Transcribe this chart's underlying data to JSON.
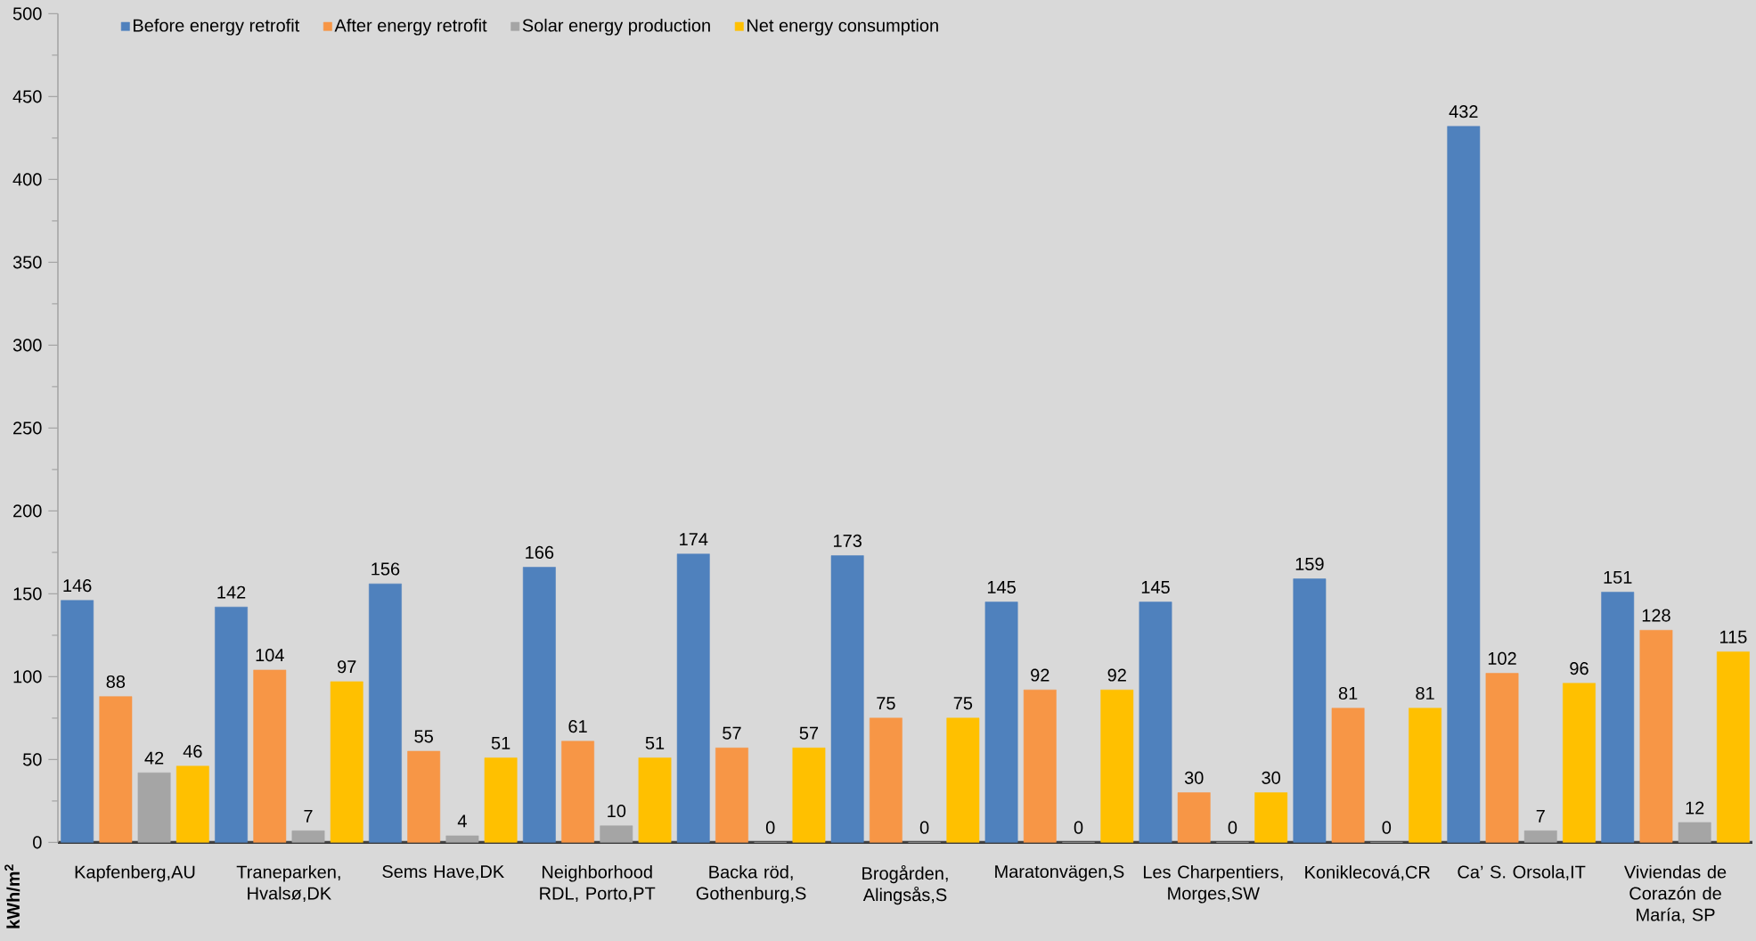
{
  "chart_data": {
    "type": "bar",
    "ylabel": "kWh/m$^{2}$",
    "categories": [
      "Kapfenberg,AU",
      "Traneparken, Hvalsø,DK",
      "Sems Have,DK",
      "Neighborhood RDL, Porto,PT",
      "Backa röd, Gothenburg,S",
      "Brogården, Alingsås,S",
      "Maratonvägen,S",
      "Les Charpentiers, Morges,SW",
      "Koniklecová,CR",
      "Ca’ S. Orsola,IT",
      "Viviendas de Corazón de María, SP"
    ],
    "series": [
      {
        "name": "Before energy retrofit",
        "color": "#4f81bd",
        "values": [
          146,
          142,
          156,
          166,
          174,
          173,
          145,
          145,
          159,
          432,
          151
        ]
      },
      {
        "name": "After energy retrofit",
        "color": "#f79646",
        "values": [
          88,
          104,
          55,
          61,
          57,
          75,
          92,
          30,
          81,
          102,
          128
        ]
      },
      {
        "name": "Solar energy production",
        "color": "#a5a5a5",
        "values": [
          42,
          7,
          4,
          10,
          0,
          0,
          0,
          0,
          0,
          7,
          12
        ]
      },
      {
        "name": "Net energy consumption",
        "color": "#ffc000",
        "values": [
          46,
          97,
          51,
          51,
          57,
          75,
          92,
          30,
          81,
          96,
          115
        ]
      }
    ],
    "ylim": [
      0,
      500
    ],
    "yticks": [
      0,
      50,
      100,
      150,
      200,
      250,
      300,
      350,
      400,
      450,
      500
    ],
    "data_labels": true,
    "legend": "top left",
    "grid": false
  }
}
